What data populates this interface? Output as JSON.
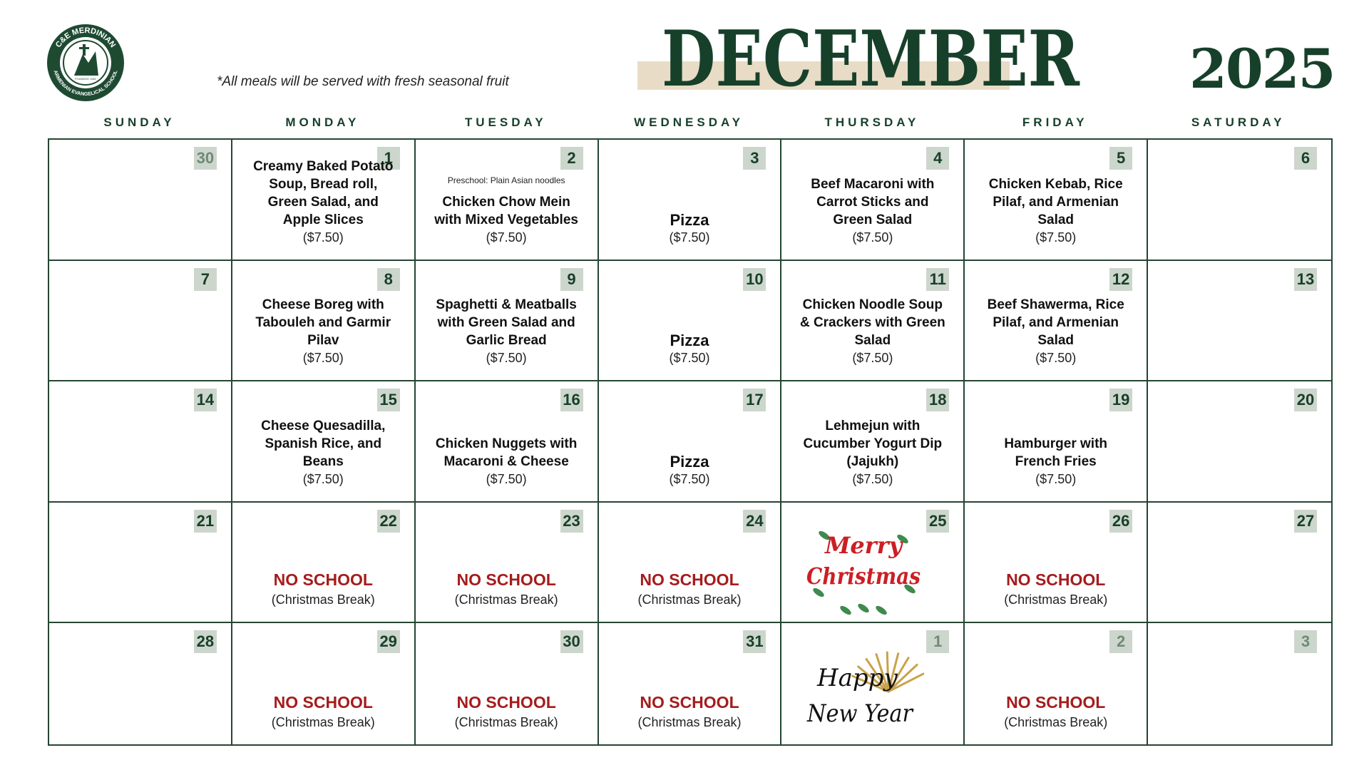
{
  "header": {
    "logo_top": "C&E MERDINIAN",
    "logo_bottom": "ARMENIAN EVANGELICAL SCHOOL",
    "logo_founded": "FOUNDED 1982",
    "note": "*All meals will be served with fresh seasonal fruit",
    "month": "DECEMBER",
    "year": "2025"
  },
  "weekdays": [
    "SUNDAY",
    "MONDAY",
    "TUESDAY",
    "WEDNESDAY",
    "THURSDAY",
    "FRIDAY",
    "SATURDAY"
  ],
  "weeks": [
    [
      {
        "day": "30"
      },
      {
        "day": "1",
        "meal": "Creamy Baked Potato Soup, Bread roll, Green Salad, and Apple Slices",
        "price": "($7.50)"
      },
      {
        "day": "2",
        "note": "Preschool: Plain Asian noodles",
        "meal": "Chicken Chow Mein with Mixed Vegetables",
        "price": "($7.50)"
      },
      {
        "day": "3",
        "meal": "Pizza",
        "price": "($7.50)"
      },
      {
        "day": "4",
        "meal": "Beef Macaroni with Carrot Sticks and Green Salad",
        "price": "($7.50)"
      },
      {
        "day": "5",
        "meal": "Chicken Kebab, Rice Pilaf, and Armenian Salad",
        "price": "($7.50)"
      },
      {
        "day": "6"
      }
    ],
    [
      {
        "day": "7"
      },
      {
        "day": "8",
        "meal": "Cheese Boreg with Tabouleh and Garmir Pilav",
        "price": "($7.50)"
      },
      {
        "day": "9",
        "meal": "Spaghetti & Meatballs with Green Salad and Garlic Bread",
        "price": "($7.50)"
      },
      {
        "day": "10",
        "meal": "Pizza",
        "price": "($7.50)"
      },
      {
        "day": "11",
        "meal": "Chicken Noodle Soup & Crackers with Green Salad",
        "price": "($7.50)"
      },
      {
        "day": "12",
        "meal": "Beef Shawerma, Rice Pilaf, and Armenian Salad",
        "price": "($7.50)"
      },
      {
        "day": "13"
      }
    ],
    [
      {
        "day": "14"
      },
      {
        "day": "15",
        "meal": "Cheese Quesadilla, Spanish Rice, and Beans",
        "price": "($7.50)"
      },
      {
        "day": "16",
        "meal": "Chicken Nuggets with Macaroni & Cheese",
        "price": "($7.50)"
      },
      {
        "day": "17",
        "meal": "Pizza",
        "price": "($7.50)"
      },
      {
        "day": "18",
        "meal": "Lehmejun with Cucumber Yogurt Dip (Jajukh)",
        "price": "($7.50)"
      },
      {
        "day": "19",
        "meal": "Hamburger with French Fries",
        "price": "($7.50)"
      },
      {
        "day": "20"
      }
    ],
    [
      {
        "day": "21"
      },
      {
        "day": "22",
        "status": "NO SCHOOL",
        "reason": "(Christmas Break)"
      },
      {
        "day": "23",
        "status": "NO SCHOOL",
        "reason": "(Christmas Break)"
      },
      {
        "day": "24",
        "status": "NO SCHOOL",
        "reason": "(Christmas Break)"
      },
      {
        "day": "25",
        "greeting": [
          "Merry",
          "Christmas"
        ]
      },
      {
        "day": "26",
        "status": "NO SCHOOL",
        "reason": "(Christmas Break)"
      },
      {
        "day": "27"
      }
    ],
    [
      {
        "day": "28"
      },
      {
        "day": "29",
        "status": "NO SCHOOL",
        "reason": "(Christmas Break)"
      },
      {
        "day": "30",
        "status": "NO SCHOOL",
        "reason": "(Christmas Break)"
      },
      {
        "day": "31",
        "status": "NO SCHOOL",
        "reason": "(Christmas Break)"
      },
      {
        "day": "1",
        "greeting": [
          "Happy",
          "New Year"
        ]
      },
      {
        "day": "2",
        "status": "NO SCHOOL",
        "reason": "(Christmas Break)"
      },
      {
        "day": "3"
      }
    ]
  ]
}
